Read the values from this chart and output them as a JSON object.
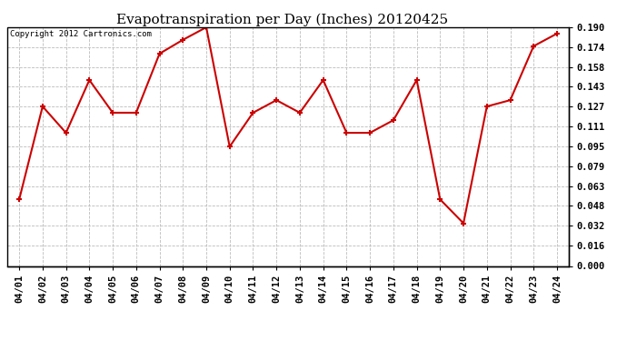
{
  "title": "Evapotranspiration per Day (Inches) 20120425",
  "copyright_text": "Copyright 2012 Cartronics.com",
  "dates": [
    "04/01",
    "04/02",
    "04/03",
    "04/04",
    "04/05",
    "04/06",
    "04/07",
    "04/08",
    "04/09",
    "04/10",
    "04/11",
    "04/12",
    "04/13",
    "04/14",
    "04/15",
    "04/16",
    "04/17",
    "04/18",
    "04/19",
    "04/20",
    "04/21",
    "04/22",
    "04/23",
    "04/24"
  ],
  "values": [
    0.053,
    0.127,
    0.106,
    0.148,
    0.122,
    0.122,
    0.169,
    0.18,
    0.19,
    0.095,
    0.122,
    0.132,
    0.122,
    0.148,
    0.106,
    0.106,
    0.116,
    0.148,
    0.053,
    0.034,
    0.127,
    0.132,
    0.175,
    0.185
  ],
  "line_color": "#cc0000",
  "marker": "+",
  "marker_size": 5,
  "ylim": [
    0.0,
    0.19
  ],
  "yticks": [
    0.0,
    0.016,
    0.032,
    0.048,
    0.063,
    0.079,
    0.095,
    0.111,
    0.127,
    0.143,
    0.158,
    0.174,
    0.19
  ],
  "background_color": "#ffffff",
  "plot_bg_color": "#ffffff",
  "grid_color": "#bbbbbb",
  "title_fontsize": 11,
  "tick_fontsize": 7.5,
  "copyright_fontsize": 6.5
}
